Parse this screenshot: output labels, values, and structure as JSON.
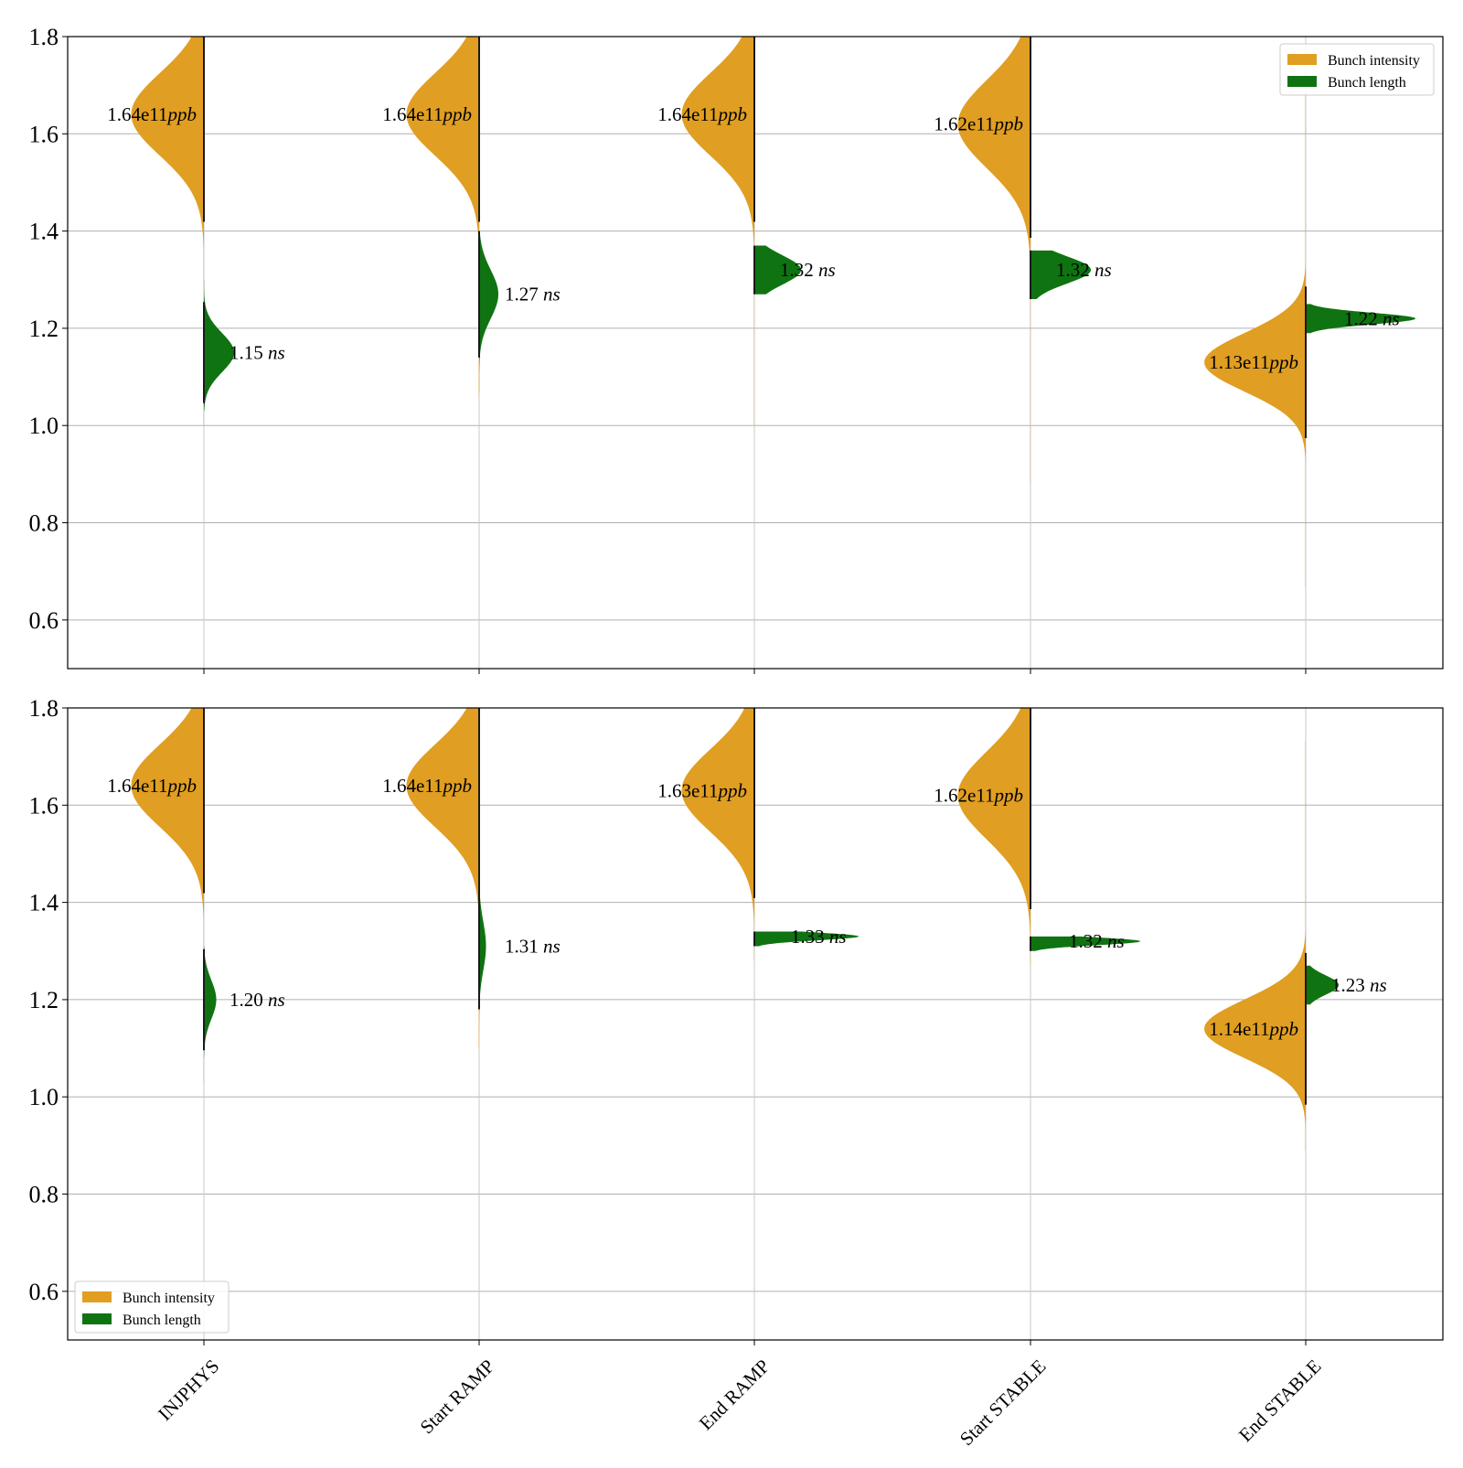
{
  "colors": {
    "intensity": "#e09e22",
    "length": "#0f7312",
    "grid": "#b0b0b0",
    "frame": "#000000",
    "stem": "#1a1a1a"
  },
  "chart_data": {
    "type": "violin",
    "categories": [
      "INJPHYS",
      "Start RAMP",
      "End RAMP",
      "Start STABLE",
      "End STABLE"
    ],
    "ylim": [
      0.5,
      1.8
    ],
    "yticks": [
      "0.6",
      "0.8",
      "1.0",
      "1.2",
      "1.4",
      "1.6",
      "1.8"
    ],
    "grid": true,
    "legend_entries": [
      "Bunch intensity",
      "Bunch length"
    ],
    "panels": [
      {
        "legend_position": "top-right",
        "series": [
          {
            "name": "Bunch intensity",
            "side": "left",
            "distributions": [
              {
                "median": 1.64,
                "spread": 0.085,
                "peak_width": 0.53,
                "range": [
                  1.0,
                  1.8
                ],
                "label": "1.64e11",
                "unit": "ppb"
              },
              {
                "median": 1.64,
                "spread": 0.085,
                "peak_width": 0.53,
                "range": [
                  1.06,
                  1.8
                ],
                "label": "1.64e11",
                "unit": "ppb"
              },
              {
                "median": 1.64,
                "spread": 0.085,
                "peak_width": 0.53,
                "range": [
                  1.0,
                  1.8
                ],
                "label": "1.64e11",
                "unit": "ppb"
              },
              {
                "median": 1.62,
                "spread": 0.09,
                "peak_width": 0.53,
                "range": [
                  0.88,
                  1.8
                ],
                "label": "1.62e11",
                "unit": "ppb"
              },
              {
                "median": 1.13,
                "spread": 0.06,
                "peak_width": 0.74,
                "range": [
                  0.67,
                  1.7
                ],
                "label": "1.13e11",
                "unit": "ppb"
              }
            ]
          },
          {
            "name": "Bunch length",
            "side": "right",
            "distributions": [
              {
                "median": 1.15,
                "spread": 0.04,
                "peak_width": 0.22,
                "range": [
                  1.03,
                  1.3
                ],
                "label": "1.15",
                "unit": "ns"
              },
              {
                "median": 1.27,
                "spread": 0.05,
                "peak_width": 0.14,
                "range": [
                  1.07,
                  1.4
                ],
                "label": "1.27",
                "unit": "ns"
              },
              {
                "median": 1.32,
                "spread": 0.03,
                "peak_width": 0.34,
                "range": [
                  1.27,
                  1.37
                ],
                "label": "1.32",
                "unit": "ns"
              },
              {
                "median": 1.32,
                "spread": 0.028,
                "peak_width": 0.44,
                "range": [
                  1.26,
                  1.36
                ],
                "label": "1.32",
                "unit": "ns"
              },
              {
                "median": 1.22,
                "spread": 0.012,
                "peak_width": 0.8,
                "range": [
                  1.19,
                  1.25
                ],
                "label": "1.22",
                "unit": "ns"
              }
            ]
          }
        ]
      },
      {
        "legend_position": "lower-left",
        "series": [
          {
            "name": "Bunch intensity",
            "side": "left",
            "distributions": [
              {
                "median": 1.64,
                "spread": 0.085,
                "peak_width": 0.53,
                "range": [
                  1.03,
                  1.8
                ],
                "label": "1.64e11",
                "unit": "ppb"
              },
              {
                "median": 1.64,
                "spread": 0.085,
                "peak_width": 0.53,
                "range": [
                  1.1,
                  1.8
                ],
                "label": "1.64e11",
                "unit": "ppb"
              },
              {
                "median": 1.63,
                "spread": 0.085,
                "peak_width": 0.53,
                "range": [
                  1.28,
                  1.8
                ],
                "label": "1.63e11",
                "unit": "ppb"
              },
              {
                "median": 1.62,
                "spread": 0.09,
                "peak_width": 0.53,
                "range": [
                  1.27,
                  1.8
                ],
                "label": "1.62e11",
                "unit": "ppb"
              },
              {
                "median": 1.14,
                "spread": 0.06,
                "peak_width": 0.74,
                "range": [
                  0.89,
                  1.73
                ],
                "label": "1.14e11",
                "unit": "ppb"
              }
            ]
          },
          {
            "name": "Bunch length",
            "side": "right",
            "distributions": [
              {
                "median": 1.2,
                "spread": 0.04,
                "peak_width": 0.09,
                "range": [
                  1.08,
                  1.31
                ],
                "label": "1.20",
                "unit": "ns"
              },
              {
                "median": 1.31,
                "spread": 0.05,
                "peak_width": 0.05,
                "range": [
                  1.14,
                  1.42
                ],
                "label": "1.31",
                "unit": "ns"
              },
              {
                "median": 1.33,
                "spread": 0.008,
                "peak_width": 0.76,
                "range": [
                  1.31,
                  1.34
                ],
                "label": "1.33",
                "unit": "ns"
              },
              {
                "median": 1.32,
                "spread": 0.008,
                "peak_width": 0.8,
                "range": [
                  1.3,
                  1.33
                ],
                "label": "1.32",
                "unit": "ns"
              },
              {
                "median": 1.23,
                "spread": 0.02,
                "peak_width": 0.24,
                "range": [
                  1.19,
                  1.27
                ],
                "label": "1.23",
                "unit": "ns"
              }
            ]
          }
        ]
      }
    ]
  }
}
